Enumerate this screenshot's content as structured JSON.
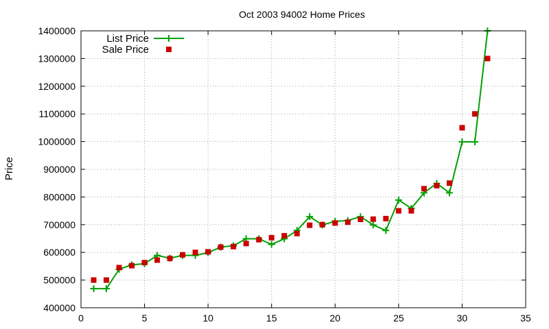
{
  "chart_data": {
    "type": "line",
    "title": "Oct 2003 94002 Home Prices",
    "xlabel": "",
    "ylabel": "Price",
    "xlim": [
      0,
      35
    ],
    "ylim": [
      400000,
      1400000
    ],
    "x_ticks": [
      0,
      5,
      10,
      15,
      20,
      25,
      30,
      35
    ],
    "y_ticks": [
      400000,
      500000,
      600000,
      700000,
      800000,
      900000,
      1000000,
      1100000,
      1200000,
      1300000,
      1400000
    ],
    "grid": true,
    "legend_position": "top-left",
    "series": [
      {
        "name": "List Price",
        "style": "line-with-plus-markers",
        "color": "#00a000",
        "x": [
          1,
          2,
          3,
          4,
          5,
          6,
          7,
          8,
          9,
          10,
          11,
          12,
          13,
          14,
          15,
          16,
          17,
          18,
          19,
          20,
          21,
          22,
          23,
          24,
          25,
          26,
          27,
          28,
          29,
          30,
          31,
          32
        ],
        "y": [
          469000,
          469000,
          539000,
          555000,
          559000,
          589000,
          579000,
          589000,
          589000,
          599000,
          619000,
          624000,
          649000,
          649000,
          629000,
          649000,
          679000,
          729000,
          699000,
          712000,
          715000,
          729000,
          699000,
          679000,
          789000,
          759000,
          815000,
          849000,
          815000,
          999000,
          999000,
          1400000
        ]
      },
      {
        "name": "Sale Price",
        "style": "square-markers",
        "color": "#cc0000",
        "x": [
          1,
          2,
          3,
          4,
          5,
          6,
          7,
          8,
          9,
          10,
          11,
          12,
          13,
          14,
          15,
          16,
          17,
          18,
          19,
          20,
          21,
          22,
          23,
          24,
          25,
          26,
          27,
          28,
          29,
          30,
          31,
          32
        ],
        "y": [
          500000,
          500000,
          545000,
          552000,
          563000,
          572000,
          578000,
          591000,
          600000,
          602000,
          619000,
          621000,
          632000,
          646000,
          653000,
          660000,
          668000,
          698000,
          700000,
          706000,
          709000,
          719000,
          720000,
          722000,
          750000,
          750000,
          830000,
          841000,
          850000,
          1050000,
          1100000,
          1300000
        ]
      }
    ]
  }
}
